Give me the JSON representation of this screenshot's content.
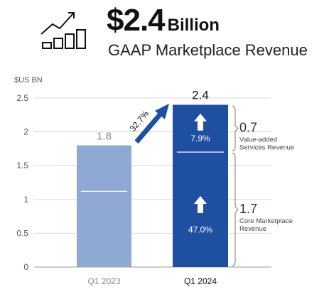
{
  "header": {
    "value": "$2.4",
    "unit": "Billion",
    "subtitle": "GAAP Marketplace Revenue",
    "icon": "growth-chart-icon"
  },
  "chart_data": {
    "type": "bar",
    "stacked": true,
    "ylabel": "$US BN",
    "ylim": [
      0,
      2.5
    ],
    "yticks": [
      "0",
      "0.5",
      "1",
      "1.5",
      "2",
      "2.5"
    ],
    "categories": [
      "Q1 2023",
      "Q1 2024"
    ],
    "totals": [
      1.8,
      2.4
    ],
    "total_labels": [
      "1.8",
      "2.4"
    ],
    "series": [
      {
        "values": [
          1.12,
          1.7
        ]
      },
      {
        "values": [
          0.68,
          0.7
        ]
      }
    ],
    "growth": {
      "label": "32.7%"
    },
    "segment_growth": [
      {
        "label": "47.0%"
      },
      {
        "label": "7.9%"
      }
    ],
    "annotations": [
      {
        "value": "1.7",
        "lines": [
          "Core Marketplace",
          "Revenue"
        ]
      },
      {
        "value": "0.7",
        "lines": [
          "Value-added",
          "Services Revenue"
        ]
      }
    ],
    "grid": true,
    "colors": {
      "q1_2023": "#8fa9d4",
      "q1_2024": "#1f4fa1",
      "arrow": "#1f4fa1",
      "grid": "#d9d9d9"
    }
  }
}
